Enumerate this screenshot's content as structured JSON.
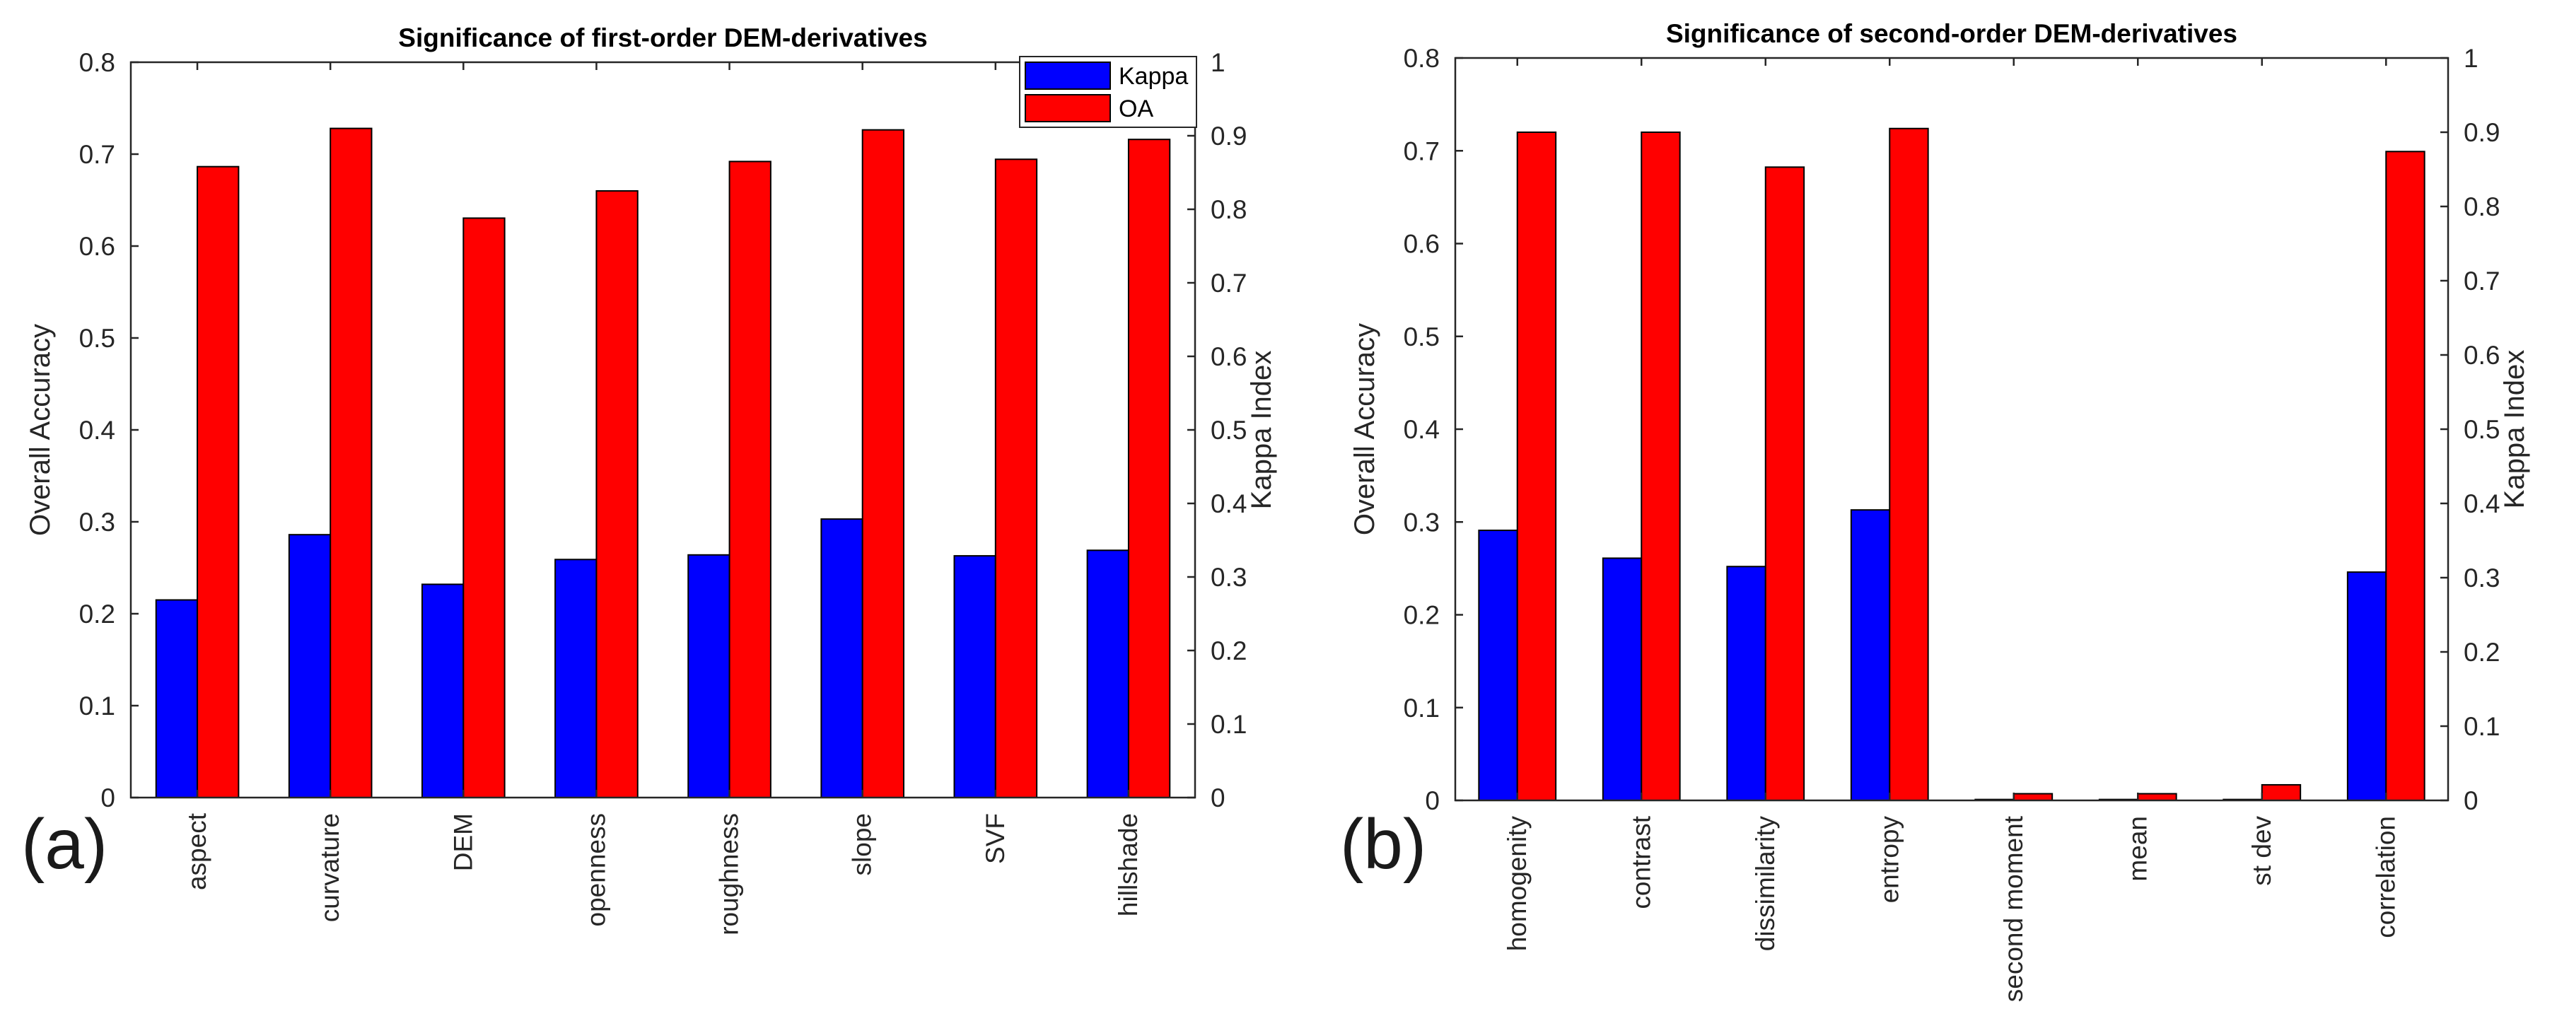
{
  "chart_data": [
    {
      "type": "bar",
      "panel_label": "(a)",
      "title": "Significance of first-order DEM-derivatives",
      "ylabel": "Overall Accuracy",
      "y2label": "Kappa Index",
      "ylim": [
        0,
        0.8
      ],
      "y2lim": [
        0,
        1
      ],
      "yticks": [
        "0",
        "0.1",
        "0.2",
        "0.3",
        "0.4",
        "0.5",
        "0.6",
        "0.7",
        "0.8"
      ],
      "y2ticks": [
        "0",
        "0.1",
        "0.2",
        "0.3",
        "0.4",
        "0.5",
        "0.6",
        "0.7",
        "0.8",
        "0.9",
        "1"
      ],
      "categories": [
        "aspect",
        "curvature",
        "DEM",
        "openness",
        "roughness",
        "slope",
        "SVF",
        "hillshade"
      ],
      "legend": {
        "position": "top-right",
        "entries": [
          "Kappa",
          "OA"
        ]
      },
      "series": [
        {
          "name": "Kappa",
          "axis": "left",
          "color": "#0000FF",
          "values": [
            0.215,
            0.286,
            0.232,
            0.259,
            0.264,
            0.303,
            0.263,
            0.269
          ]
        },
        {
          "name": "OA",
          "axis": "right",
          "color": "#FF0000",
          "values": [
            0.858,
            0.91,
            0.788,
            0.825,
            0.865,
            0.908,
            0.868,
            0.895
          ]
        }
      ]
    },
    {
      "type": "bar",
      "panel_label": "(b)",
      "title": "Significance of second-order DEM-derivatives",
      "ylabel": "Overall Accuracy",
      "y2label": "Kappa Index",
      "ylim": [
        0,
        0.8
      ],
      "y2lim": [
        0,
        1
      ],
      "yticks": [
        "0",
        "0.1",
        "0.2",
        "0.3",
        "0.4",
        "0.5",
        "0.6",
        "0.7",
        "0.8"
      ],
      "y2ticks": [
        "0",
        "0.1",
        "0.2",
        "0.3",
        "0.4",
        "0.5",
        "0.6",
        "0.7",
        "0.8",
        "0.9",
        "1"
      ],
      "categories": [
        "homogenity",
        "contrast",
        "dissimilarity",
        "entropy",
        "second moment",
        "mean",
        "st dev",
        "correlation"
      ],
      "legend": null,
      "series": [
        {
          "name": "Kappa",
          "axis": "left",
          "color": "#0000FF",
          "values": [
            0.291,
            0.261,
            0.252,
            0.313,
            0.001,
            0.001,
            0.001,
            0.246
          ]
        },
        {
          "name": "OA",
          "axis": "right",
          "color": "#FF0000",
          "values": [
            0.9,
            0.9,
            0.853,
            0.905,
            0.009,
            0.009,
            0.021,
            0.874
          ]
        }
      ]
    }
  ]
}
